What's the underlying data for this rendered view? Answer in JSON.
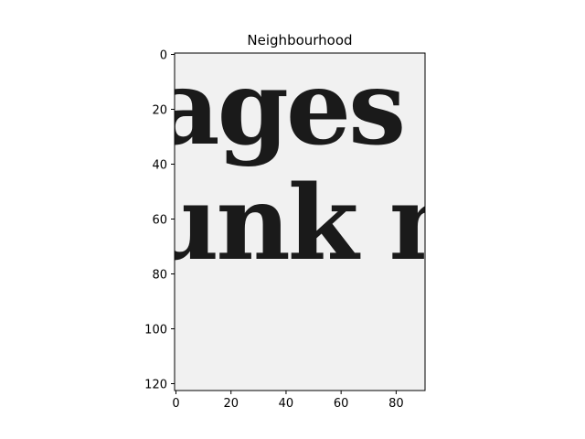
{
  "chart_data": {
    "type": "heatmap",
    "title": "Neighbourhood",
    "xlabel": "",
    "ylabel": "",
    "x_extent": [
      -0.5,
      90.5
    ],
    "y_extent": [
      122.5,
      -0.5
    ],
    "y_inverted": true,
    "colormap": "gray",
    "grid": false,
    "x_ticks": [
      0,
      20,
      40,
      60,
      80
    ],
    "y_ticks": [
      0,
      20,
      40,
      60,
      80,
      100,
      120
    ],
    "x_tick_labels": [
      "0",
      "20",
      "40",
      "60",
      "80"
    ],
    "y_tick_labels": [
      "0",
      "20",
      "40",
      "60",
      "80",
      "100",
      "120"
    ],
    "image_text_lines": [
      "ages",
      "unk m"
    ]
  }
}
